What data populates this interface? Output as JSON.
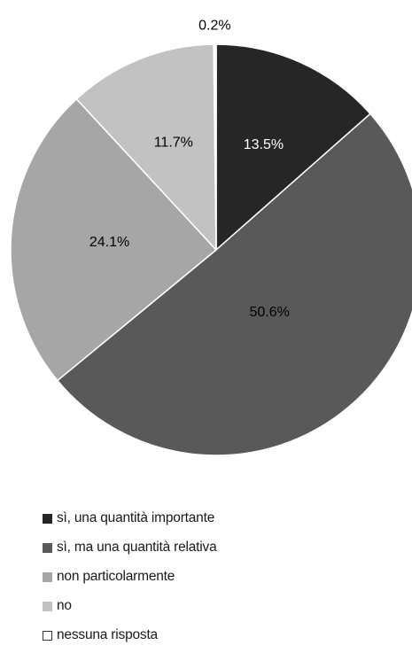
{
  "chart_data": {
    "type": "pie",
    "categories": [
      "sì, una quantità importante",
      "sì, ma una quantità relativa",
      "non particolarmente",
      "no",
      "nessuna risposta"
    ],
    "values": [
      13.5,
      50.6,
      24.1,
      11.7,
      0.2
    ],
    "labels": [
      "13.5%",
      "50.6%",
      "24.1%",
      "11.7%",
      "0.2%"
    ],
    "colors": [
      "#262626",
      "#595959",
      "#a6a6a6",
      "#c2c2c2",
      "#ffffff"
    ],
    "label_colors": [
      "#ffffff",
      "#000000",
      "#000000",
      "#000000",
      "#000000"
    ],
    "start_angle": "12 o'clock",
    "direction": "clockwise",
    "legend_position": "bottom-left"
  }
}
